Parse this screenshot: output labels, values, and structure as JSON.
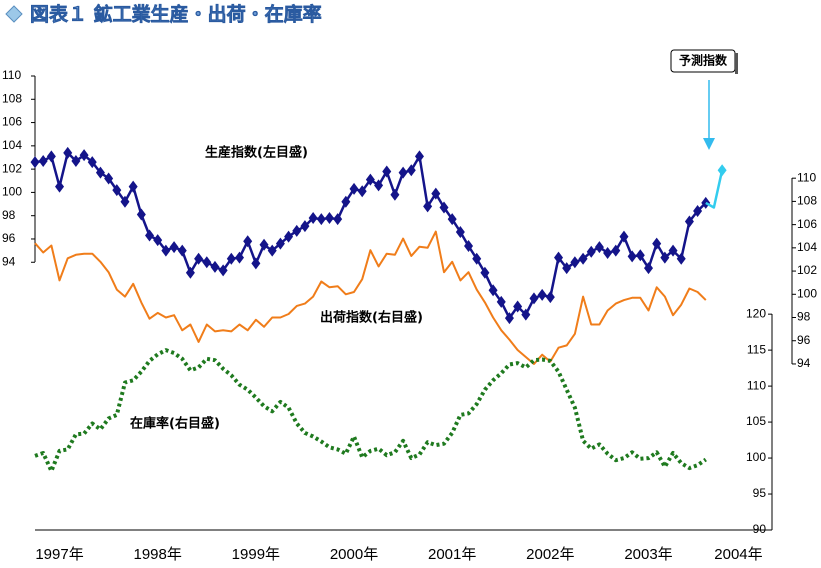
{
  "chart_data": {
    "type": "line",
    "title": "図表１ 鉱工業生産・出荷・在庫率",
    "annotations": [
      "予測指数"
    ],
    "categories": [
      null,
      null,
      null,
      "1997年",
      null,
      null,
      null,
      null,
      null,
      null,
      null,
      null,
      null,
      null,
      null,
      "1998年",
      null,
      null,
      null,
      null,
      null,
      null,
      null,
      null,
      null,
      null,
      null,
      "1999年",
      null,
      null,
      null,
      null,
      null,
      null,
      null,
      null,
      null,
      null,
      null,
      "2000年",
      null,
      null,
      null,
      null,
      null,
      null,
      null,
      null,
      null,
      null,
      null,
      "2001年",
      null,
      null,
      null,
      null,
      null,
      null,
      null,
      null,
      null,
      null,
      null,
      "2002年",
      null,
      null,
      null,
      null,
      null,
      null,
      null,
      null,
      null,
      null,
      null,
      "2003年",
      null,
      null,
      null,
      null,
      null,
      null,
      null,
      null,
      null,
      null,
      "2004年"
    ],
    "ylim": [
      71,
      110
    ],
    "yticks": [
      94,
      96,
      98,
      100,
      102,
      104,
      106,
      108,
      110
    ],
    "y2lim": [
      79.7,
      118.8
    ],
    "y2ticks": [
      94,
      96,
      98,
      100,
      102,
      104,
      106,
      108,
      110
    ],
    "y3lim": [
      90,
      153.1
    ],
    "y3ticks": [
      90,
      95,
      100,
      105,
      110,
      115,
      120
    ],
    "series": [
      {
        "name": "生産指数(左目盛)",
        "color": "#14148a",
        "axis": "y",
        "markers": true,
        "values": [
          102.6,
          102.7,
          103.1,
          100.5,
          103.4,
          102.7,
          103.2,
          102.6,
          101.7,
          101.2,
          100.2,
          99.2,
          100.5,
          98.1,
          96.3,
          95.9,
          95.0,
          95.3,
          95.0,
          93.1,
          94.3,
          94.0,
          93.6,
          93.3,
          94.3,
          94.4,
          95.8,
          93.9,
          95.5,
          95.0,
          95.6,
          96.2,
          96.7,
          97.1,
          97.8,
          97.7,
          97.8,
          97.7,
          99.2,
          100.3,
          100.1,
          101.1,
          100.6,
          101.8,
          99.8,
          101.7,
          101.9,
          103.1,
          98.8,
          99.9,
          98.7,
          97.7,
          96.6,
          95.4,
          94.3,
          93.1,
          91.6,
          90.6,
          89.2,
          90.2,
          89.5,
          90.9,
          91.2,
          91.0,
          94.4,
          93.5,
          94.0,
          94.3,
          94.9,
          95.3,
          94.8,
          95.0,
          96.2,
          94.5,
          94.6,
          93.5,
          95.6,
          94.4,
          95.0,
          94.3,
          97.5,
          98.4,
          99.1,
          null,
          null,
          null,
          null
        ]
      },
      {
        "name": "予測指数",
        "color": "#33ccee",
        "axis": "y",
        "markers": "last",
        "values": [
          null,
          null,
          null,
          null,
          null,
          null,
          null,
          null,
          null,
          null,
          null,
          null,
          null,
          null,
          null,
          null,
          null,
          null,
          null,
          null,
          null,
          null,
          null,
          null,
          null,
          null,
          null,
          null,
          null,
          null,
          null,
          null,
          null,
          null,
          null,
          null,
          null,
          null,
          null,
          null,
          null,
          null,
          null,
          null,
          null,
          null,
          null,
          null,
          null,
          null,
          null,
          null,
          null,
          null,
          null,
          null,
          null,
          null,
          null,
          null,
          null,
          null,
          null,
          null,
          null,
          null,
          null,
          null,
          null,
          null,
          null,
          null,
          null,
          null,
          null,
          null,
          null,
          null,
          null,
          null,
          null,
          null,
          99.1,
          98.7,
          101.9,
          null,
          null
        ]
      },
      {
        "name": "出荷指数(右目盛)",
        "color": "#f07d1a",
        "axis": "y2",
        "values": [
          104.4,
          103.6,
          104.2,
          101.2,
          103.1,
          103.4,
          103.5,
          103.5,
          102.8,
          101.9,
          100.4,
          99.8,
          100.9,
          99.3,
          97.9,
          98.4,
          98.0,
          98.2,
          96.9,
          97.4,
          95.9,
          97.4,
          96.8,
          96.9,
          96.8,
          97.4,
          96.9,
          97.8,
          97.2,
          98.0,
          98.0,
          98.3,
          99.0,
          99.2,
          99.8,
          101.1,
          100.6,
          100.7,
          100.0,
          100.2,
          101.3,
          103.8,
          102.4,
          103.5,
          103.4,
          104.8,
          103.3,
          104.1,
          104.0,
          105.4,
          101.9,
          102.8,
          101.2,
          101.9,
          100.4,
          99.3,
          98.0,
          96.9,
          96.1,
          95.2,
          94.6,
          94.0,
          94.8,
          94.2,
          95.4,
          95.6,
          96.6,
          99.8,
          97.4,
          97.4,
          98.6,
          99.2,
          99.5,
          99.7,
          99.7,
          98.6,
          100.6,
          99.8,
          98.2,
          99.1,
          100.5,
          100.2,
          99.5,
          null,
          null,
          null,
          null
        ]
      },
      {
        "name": "在庫率(右目盛)",
        "color": "#1f7a1f",
        "axis": "y3",
        "dotted": true,
        "values": [
          100.3,
          100.7,
          98.2,
          101.0,
          101.2,
          103.3,
          103.4,
          104.8,
          104.0,
          105.5,
          106.0,
          110.5,
          110.8,
          112.0,
          113.5,
          114.4,
          115.0,
          114.6,
          113.8,
          112.2,
          112.6,
          113.8,
          113.6,
          112.4,
          111.5,
          110.2,
          109.5,
          108.4,
          107.2,
          106.5,
          107.8,
          107.0,
          104.8,
          103.5,
          103.0,
          102.3,
          101.5,
          101.2,
          100.6,
          103.0,
          100.1,
          101.0,
          101.3,
          100.4,
          100.8,
          102.4,
          100.0,
          100.5,
          102.2,
          101.8,
          102.0,
          103.5,
          106.0,
          106.2,
          107.5,
          109.5,
          110.8,
          111.8,
          113.0,
          113.2,
          112.6,
          113.6,
          113.7,
          113.5,
          112.0,
          109.5,
          107.0,
          102.4,
          101.3,
          101.9,
          100.6,
          99.7,
          100.0,
          100.8,
          99.9,
          100.0,
          100.8,
          98.8,
          100.7,
          99.3,
          98.6,
          99.0,
          99.8,
          null,
          null,
          null,
          null
        ]
      }
    ]
  }
}
